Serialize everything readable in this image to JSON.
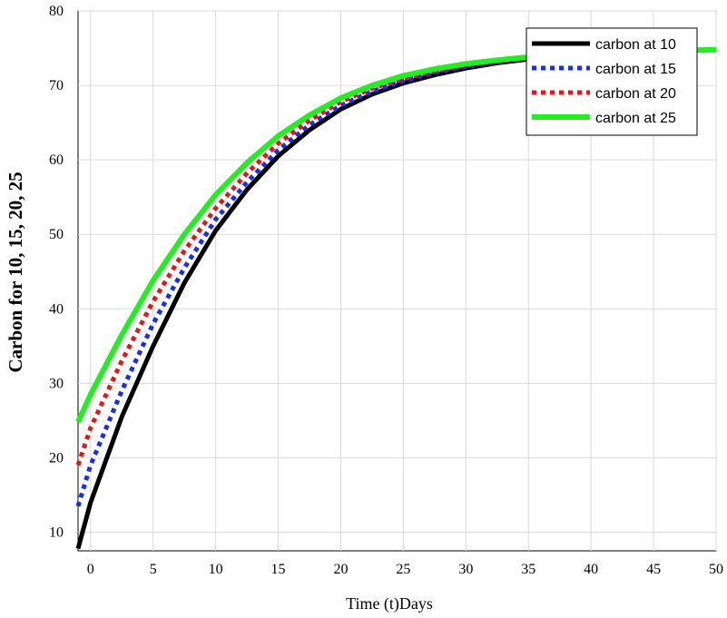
{
  "chart_data": {
    "type": "line",
    "xlabel": "Time (t)Days",
    "ylabel": "Carbon for 10, 15, 20, 25",
    "xlim": [
      -1,
      50
    ],
    "ylim": [
      7.5,
      80
    ],
    "xticks": [
      0,
      5,
      10,
      15,
      20,
      25,
      30,
      35,
      40,
      45,
      50
    ],
    "yticks": [
      10,
      20,
      30,
      40,
      50,
      60,
      70,
      80
    ],
    "grid": true,
    "legend_position": "top-right",
    "x": [
      -1,
      0,
      2.5,
      5,
      7.5,
      10,
      12.5,
      15,
      17.5,
      20,
      22.5,
      25,
      27.5,
      30,
      32.5,
      35,
      37.5,
      40,
      42.5,
      45,
      47.5,
      50
    ],
    "series": [
      {
        "name": "carbon at 10",
        "color": "#000000",
        "style": "solid",
        "values": [
          7.8,
          14.0,
          25.5,
          35.0,
          43.5,
          50.5,
          56.0,
          60.5,
          64.0,
          66.8,
          68.8,
          70.3,
          71.4,
          72.3,
          73.0,
          73.5,
          73.9,
          74.2,
          74.4,
          74.6,
          74.7,
          74.8
        ]
      },
      {
        "name": "carbon at 15",
        "color": "#1a2ee6",
        "style": "dotted",
        "values": [
          13.5,
          19.0,
          29.0,
          38.0,
          45.5,
          52.0,
          57.0,
          61.3,
          64.7,
          67.3,
          69.2,
          70.6,
          71.7,
          72.5,
          73.1,
          73.6,
          74.0,
          74.3,
          74.5,
          74.6,
          74.7,
          74.8
        ]
      },
      {
        "name": "carbon at 20",
        "color": "#e01818",
        "style": "dotted",
        "values": [
          19.0,
          24.0,
          33.0,
          41.0,
          47.8,
          53.5,
          58.2,
          62.2,
          65.3,
          67.8,
          69.6,
          70.9,
          71.9,
          72.7,
          73.2,
          73.7,
          74.0,
          74.3,
          74.5,
          74.6,
          74.7,
          74.8
        ]
      },
      {
        "name": "carbon at 25",
        "color": "#22ee22",
        "style": "solid",
        "values": [
          24.8,
          28.5,
          36.5,
          43.8,
          50.0,
          55.3,
          59.6,
          63.2,
          66.0,
          68.3,
          70.0,
          71.3,
          72.2,
          72.9,
          73.4,
          73.8,
          74.1,
          74.3,
          74.5,
          74.6,
          74.7,
          74.8
        ]
      }
    ]
  }
}
